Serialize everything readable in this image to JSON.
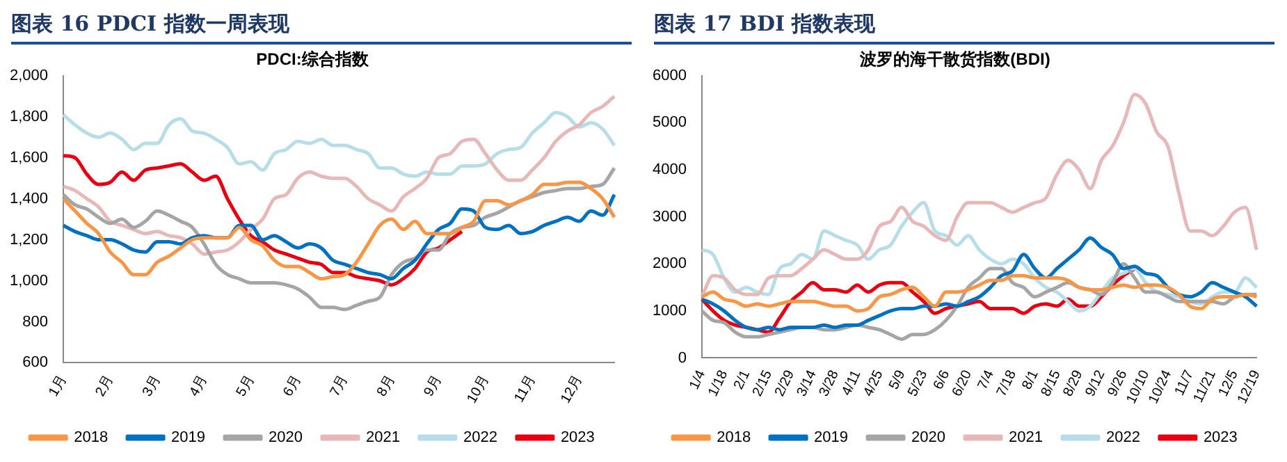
{
  "chart_data": [
    {
      "type": "line",
      "title": "图表 16 PDCI 指数一周表现",
      "subtitle": "PDCI:综合指数",
      "marker": "none",
      "grid": false,
      "legend": "bottom",
      "categories": [
        "1月",
        null,
        null,
        null,
        "2月",
        null,
        null,
        null,
        "3月",
        null,
        null,
        null,
        "4月",
        null,
        null,
        null,
        "5月",
        null,
        null,
        null,
        "6月",
        null,
        null,
        null,
        "7月",
        null,
        null,
        null,
        "8月",
        null,
        null,
        null,
        "9月",
        null,
        null,
        null,
        "10月",
        null,
        null,
        null,
        "11月",
        null,
        null,
        null,
        "12月",
        null,
        null,
        null
      ],
      "ylim": [
        600,
        2000
      ],
      "yticks": [
        600,
        800,
        {
          "value": 1000,
          "label": "1,000"
        },
        {
          "value": 1200,
          "label": "1,200"
        },
        {
          "value": 1400,
          "label": "1,400"
        },
        {
          "value": 1600,
          "label": "1,600"
        },
        {
          "value": 1800,
          "label": "1,800"
        },
        {
          "value": 2000,
          "label": "2,000"
        }
      ],
      "series": [
        {
          "name": "2018",
          "color": "#f79646",
          "values": [
            1400,
            1340,
            1280,
            1230,
            1140,
            1090,
            1030,
            1030,
            1090,
            1120,
            1160,
            1200,
            1210,
            1210,
            1210,
            1260,
            1200,
            1170,
            1100,
            1070,
            1070,
            1040,
            1010,
            1020,
            1030,
            1090,
            1180,
            1270,
            1300,
            1250,
            1290,
            1230,
            1230,
            1230,
            1260,
            1290,
            1390,
            1390,
            1370,
            1390,
            1420,
            1470,
            1470,
            1480,
            1480,
            1450,
            1400,
            1310
          ]
        },
        {
          "name": "2019",
          "color": "#0070c0",
          "values": [
            1270,
            1240,
            1220,
            1200,
            1200,
            1180,
            1150,
            1140,
            1190,
            1190,
            1180,
            1210,
            1220,
            1210,
            1210,
            1270,
            1270,
            1200,
            1220,
            1190,
            1160,
            1180,
            1160,
            1100,
            1080,
            1060,
            1040,
            1030,
            1010,
            1060,
            1100,
            1180,
            1250,
            1280,
            1350,
            1340,
            1260,
            1250,
            1270,
            1230,
            1240,
            1270,
            1290,
            1310,
            1290,
            1340,
            1320,
            1420
          ]
        },
        {
          "name": "2020",
          "color": "#a5a5a5",
          "values": [
            1420,
            1370,
            1350,
            1310,
            1280,
            1300,
            1260,
            1290,
            1340,
            1320,
            1290,
            1260,
            1180,
            1080,
            1030,
            1010,
            990,
            990,
            990,
            980,
            960,
            920,
            870,
            870,
            860,
            880,
            900,
            920,
            1030,
            1090,
            1110,
            1150,
            1150,
            1230,
            1260,
            1270,
            1310,
            1330,
            1360,
            1390,
            1410,
            1430,
            1440,
            1450,
            1450,
            1460,
            1470,
            1550
          ]
        },
        {
          "name": "2021",
          "color": "#e6b9b8",
          "values": [
            1460,
            1440,
            1400,
            1360,
            1290,
            1270,
            1250,
            1230,
            1240,
            1220,
            1210,
            1180,
            1130,
            1140,
            1150,
            1190,
            1250,
            1300,
            1400,
            1420,
            1500,
            1530,
            1510,
            1500,
            1500,
            1460,
            1400,
            1370,
            1340,
            1410,
            1450,
            1500,
            1600,
            1620,
            1680,
            1690,
            1620,
            1540,
            1490,
            1490,
            1540,
            1600,
            1680,
            1730,
            1760,
            1820,
            1850,
            1900
          ]
        },
        {
          "name": "2022",
          "color": "#b7dee8",
          "values": [
            1810,
            1760,
            1720,
            1700,
            1720,
            1690,
            1640,
            1670,
            1670,
            1760,
            1790,
            1730,
            1720,
            1690,
            1650,
            1570,
            1580,
            1540,
            1620,
            1640,
            1680,
            1670,
            1690,
            1660,
            1660,
            1640,
            1620,
            1550,
            1550,
            1520,
            1510,
            1530,
            1520,
            1520,
            1560,
            1560,
            1570,
            1620,
            1640,
            1650,
            1720,
            1770,
            1820,
            1800,
            1750,
            1770,
            1740,
            1660
          ]
        },
        {
          "name": "2023",
          "color": "#e60012",
          "values": [
            1610,
            1600,
            1520,
            1470,
            1480,
            1530,
            1490,
            1540,
            1550,
            1560,
            1570,
            1530,
            1490,
            1510,
            1400,
            1300,
            1220,
            1190,
            1150,
            1130,
            1110,
            1090,
            1080,
            1040,
            1040,
            1020,
            1010,
            1000,
            980,
            1010,
            1060,
            1140,
            1160,
            1200,
            1240,
            null,
            null,
            null,
            null,
            null,
            null,
            null,
            null,
            null,
            null,
            null,
            null,
            null
          ]
        }
      ]
    },
    {
      "type": "line",
      "title": "图表 17 BDI 指数表现",
      "subtitle": "波罗的海干散货指数(BDI)",
      "marker": "none",
      "grid": false,
      "legend": "bottom",
      "categories": [
        "1/4",
        null,
        "1/18",
        null,
        "2/1",
        null,
        "2/15",
        null,
        "2/29",
        null,
        "3/14",
        null,
        "3/28",
        null,
        "4/11",
        null,
        "4/25",
        null,
        "5/9",
        null,
        "5/23",
        null,
        "6/6",
        null,
        "6/20",
        null,
        "7/4",
        null,
        "7/18",
        null,
        "8/1",
        null,
        "8/15",
        null,
        "8/29",
        null,
        "9/12",
        null,
        "9/26",
        null,
        "10/10",
        null,
        "10/24",
        null,
        "11/7",
        null,
        "11/21",
        null,
        "12/5",
        null,
        "12/19"
      ],
      "ylim": [
        0,
        6000
      ],
      "yticks": [
        0,
        1000,
        2000,
        3000,
        4000,
        5000,
        6000
      ],
      "series": [
        {
          "name": "2018",
          "color": "#f79646",
          "values": [
            1300,
            1400,
            1250,
            1200,
            1100,
            1150,
            1100,
            1150,
            1200,
            1200,
            1200,
            1150,
            1100,
            1100,
            1000,
            1050,
            1300,
            1350,
            1450,
            1500,
            1300,
            1100,
            1400,
            1400,
            1450,
            1550,
            1650,
            1650,
            1750,
            1750,
            1700,
            1700,
            1700,
            1650,
            1500,
            1450,
            1450,
            1500,
            1550,
            1500,
            1550,
            1550,
            1500,
            1350,
            1100,
            1050,
            1250,
            1300,
            1300,
            1350,
            1300
          ]
        },
        {
          "name": "2019",
          "color": "#0070c0",
          "values": [
            1250,
            1150,
            1000,
            800,
            650,
            600,
            650,
            600,
            650,
            650,
            650,
            700,
            650,
            700,
            700,
            800,
            900,
            1000,
            1050,
            1050,
            1100,
            1100,
            1150,
            1100,
            1200,
            1300,
            1500,
            1750,
            1850,
            2200,
            1900,
            1700,
            1900,
            2100,
            2300,
            2550,
            2350,
            2200,
            1900,
            1950,
            1800,
            1750,
            1500,
            1350,
            1300,
            1400,
            1600,
            1500,
            1400,
            1300,
            1100
          ]
        },
        {
          "name": "2020",
          "color": "#a5a5a5",
          "values": [
            1000,
            800,
            750,
            550,
            450,
            450,
            500,
            550,
            600,
            650,
            650,
            600,
            600,
            650,
            700,
            650,
            600,
            500,
            400,
            500,
            500,
            600,
            800,
            1100,
            1500,
            1700,
            1900,
            1900,
            1600,
            1500,
            1300,
            1400,
            1500,
            1600,
            1500,
            1450,
            1350,
            1600,
            2000,
            1700,
            1400,
            1400,
            1300,
            1200,
            1200,
            1200,
            1200,
            1150,
            1300,
            1350,
            1350
          ]
        },
        {
          "name": "2021",
          "color": "#e6b9b8",
          "values": [
            1300,
            1750,
            1700,
            1450,
            1350,
            1350,
            1700,
            1750,
            1750,
            1900,
            2100,
            2300,
            2200,
            2100,
            2100,
            2300,
            2800,
            2900,
            3200,
            2900,
            2800,
            2600,
            2500,
            3000,
            3300,
            3300,
            3300,
            3200,
            3100,
            3200,
            3300,
            3400,
            3900,
            4200,
            4000,
            3600,
            4200,
            4500,
            5000,
            5600,
            5400,
            4800,
            4500,
            3500,
            2700,
            2700,
            2600,
            2800,
            3100,
            3200,
            2300
          ]
        },
        {
          "name": "2022",
          "color": "#b7dee8",
          "values": [
            2300,
            2200,
            1700,
            1400,
            1500,
            1400,
            1350,
            1900,
            2000,
            2200,
            2100,
            2700,
            2600,
            2500,
            2400,
            2100,
            2300,
            2400,
            2800,
            3100,
            3300,
            2700,
            2600,
            2400,
            2600,
            2300,
            2100,
            2000,
            2100,
            2000,
            1700,
            1500,
            1400,
            1200,
            1000,
            1100,
            1400,
            1700,
            1800,
            1900,
            1600,
            1400,
            1350,
            1300,
            1200,
            1150,
            1300,
            1400,
            1400,
            1700,
            1500
          ]
        },
        {
          "name": "2023",
          "color": "#e60012",
          "values": [
            1250,
            1000,
            800,
            700,
            650,
            600,
            550,
            850,
            1200,
            1400,
            1600,
            1450,
            1450,
            1400,
            1550,
            1400,
            1550,
            1600,
            1600,
            1400,
            1200,
            950,
            1050,
            1100,
            1150,
            1200,
            1050,
            1050,
            1050,
            950,
            1100,
            1150,
            1100,
            1250,
            1100,
            1100,
            1300,
            1550,
            1750,
            1900,
            null,
            null,
            null,
            null,
            null,
            null,
            null,
            null,
            null,
            null,
            null
          ]
        }
      ]
    }
  ]
}
